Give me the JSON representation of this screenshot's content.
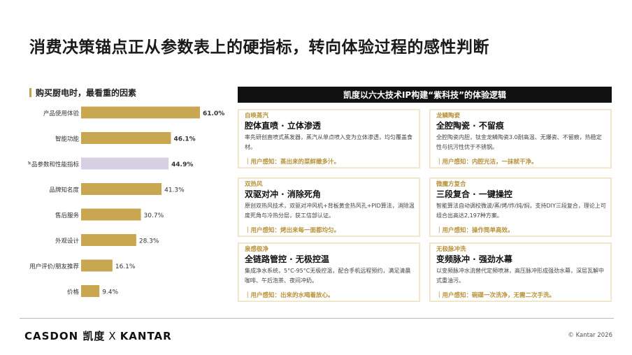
{
  "title": "消费决策锚点正从参数表上的硬指标，转向体验过程的感性判断",
  "left": {
    "heading": "购买厨电时，最看重的因素"
  },
  "chart_data": {
    "type": "bar",
    "orientation": "horizontal",
    "title": "购买厨电时，最看重的因素",
    "categories": [
      "产品使用体验",
      "智能功能",
      "产品参数和性能指标",
      "品牌知名度",
      "售后服务",
      "外观设计",
      "用户评价/朋友推荐",
      "价格"
    ],
    "values": [
      61.0,
      46.1,
      44.9,
      41.3,
      30.7,
      28.3,
      16.1,
      9.4
    ],
    "value_labels": [
      "61.0%",
      "46.1%",
      "44.9%",
      "41.3%",
      "30.7%",
      "28.3%",
      "16.1%",
      "9.4%"
    ],
    "bold_labels": [
      true,
      true,
      true,
      false,
      false,
      false,
      false,
      false
    ],
    "bar_colors": [
      "#c9a650",
      "#c9a650",
      "#d6d0e2",
      "#c9a650",
      "#c9a650",
      "#c9a650",
      "#c9a650",
      "#c9a650"
    ],
    "xlim": [
      0,
      61
    ],
    "grid": false,
    "legend": "none"
  },
  "right": {
    "banner": "凯度以六大技术IP构建“紫科技”的体验逻辑",
    "cards": [
      {
        "tag": "自唤蒸汽",
        "title": "腔体直喷 · 立体渗透",
        "desc": "率先研创直喷式蒸发器，蒸汽从单点喷入变为立体渗透，均匀覆盖食材。",
        "sense": "｜用户感知：蒸出来的菜鲜嫩多汁。"
      },
      {
        "tag": "龙鳞陶瓷",
        "title": "全腔陶瓷 · 不留痕",
        "desc": "全腔陶瓷内胆，钛金龙鳞陶瓷3.0耐高温、无爆瓷、不留痕，热稳定性与抗污性优于不锈钢。",
        "sense": "｜用户感知：内腔光洁，一抹就干净。"
      },
      {
        "tag": "双热风",
        "title": "双驱对冲 · 消除死角",
        "desc": "原创双热风技术，双驱对冲风机+背板黄金热风孔+PID算法，消除温度死角与冷热分层，获工信部认证。",
        "sense": "｜用户感知：烤出来每一面都均匀。"
      },
      {
        "tag": "微魔方复合",
        "title": "三段复合 · 一键操控",
        "desc": "智能算法自动调校微波/蒸/烤/炸/炖/焖，支持DIY三段复合，理论上可组合出高达2,197种方案。",
        "sense": "｜用户感知：操作简单高效。"
      },
      {
        "tag": "泉感极净",
        "title": "全链路管控 · 无极控温",
        "desc": "集成净水系统，5°C-95°C无极控温，配合手机远程预约，满足清晨咖啡、午后泡茶、夜间冲奶。",
        "sense": "｜用户感知：出来的水喝着放心。"
      },
      {
        "tag": "无极脉冲洗",
        "title": "变频脉冲 · 强劲水幕",
        "desc": "以变频脉冲水流替代定频喷淋，高压脉冲形成强劲水幕，深层瓦解中式重油污。",
        "sense": "｜用户感知：碗碟一次洗净，无需二次手洗。"
      }
    ],
    "colors": {
      "accent": "#b8923a",
      "banner_bg": "#111111",
      "card_border": "#eee2c4"
    }
  },
  "footer": {
    "brand1": "CASDON 凯度",
    "x": "X",
    "brand2": "KANTAR",
    "copyright": "© Kantar 2026"
  }
}
